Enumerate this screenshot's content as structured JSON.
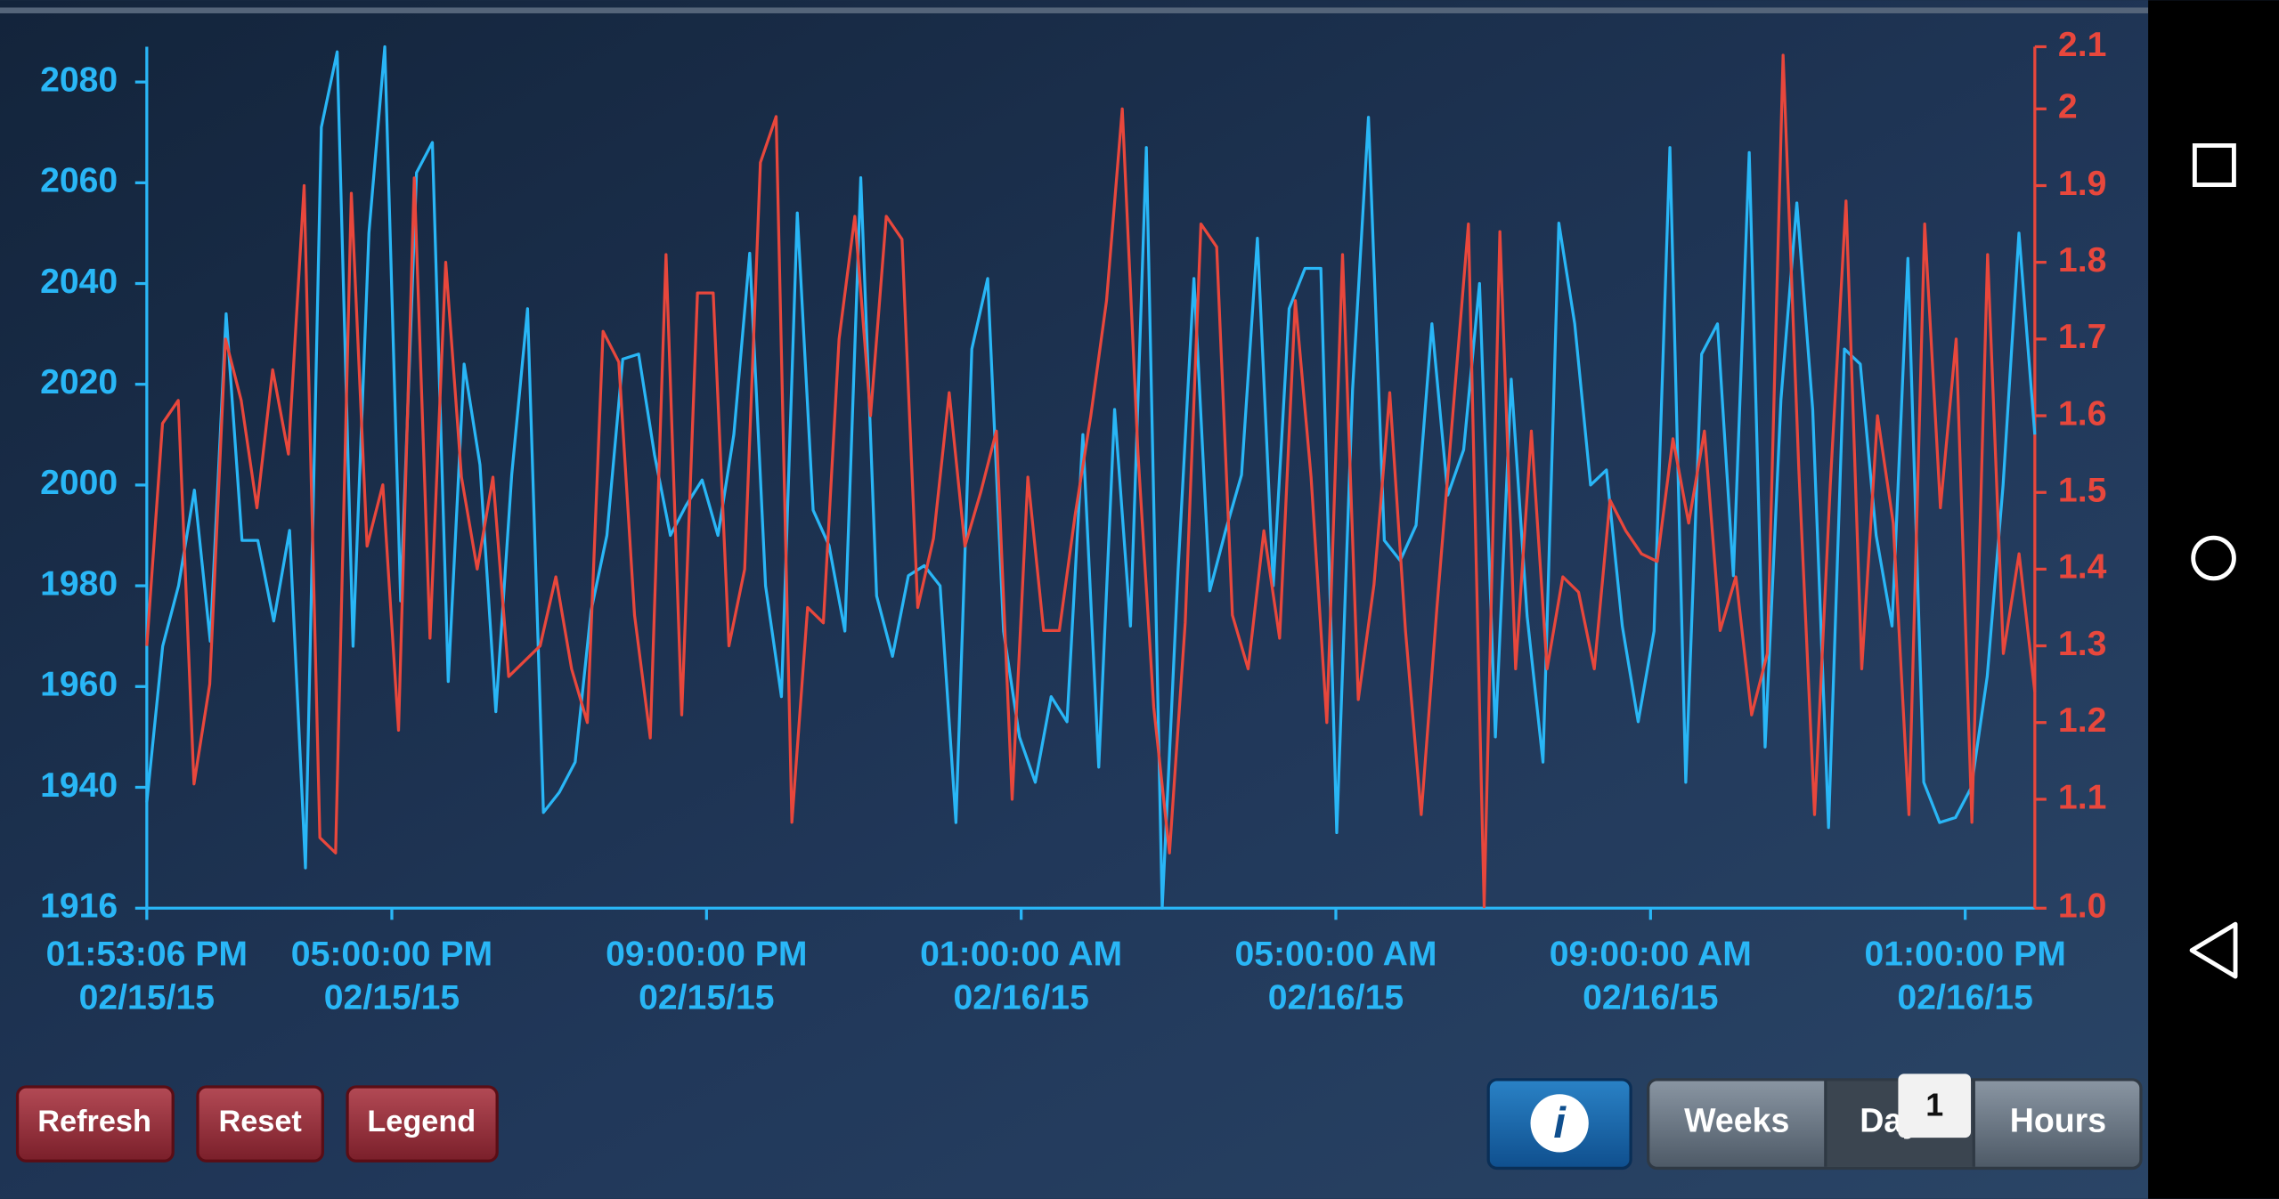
{
  "chart_data": {
    "type": "line",
    "xlim": [
      "2015-02-15T13:53:06",
      "2015-02-16T13:53:06"
    ],
    "xticks": [
      {
        "value": "2015-02-15T13:53:06",
        "label": [
          "01:53:06 PM",
          "02/15/15"
        ]
      },
      {
        "value": "2015-02-15T17:00:00",
        "label": [
          "05:00:00 PM",
          "02/15/15"
        ]
      },
      {
        "value": "2015-02-15T21:00:00",
        "label": [
          "09:00:00 PM",
          "02/15/15"
        ]
      },
      {
        "value": "2015-02-16T01:00:00",
        "label": [
          "01:00:00 AM",
          "02/16/15"
        ]
      },
      {
        "value": "2015-02-16T05:00:00",
        "label": [
          "05:00:00 AM",
          "02/16/15"
        ]
      },
      {
        "value": "2015-02-16T09:00:00",
        "label": [
          "09:00:00 AM",
          "02/16/15"
        ]
      },
      {
        "value": "2015-02-16T13:00:00",
        "label": [
          "01:00:00 PM",
          "02/16/15"
        ]
      }
    ],
    "ylim": [
      1916,
      2087
    ],
    "yticks": [
      1916,
      1940,
      1960,
      1980,
      2000,
      2020,
      2040,
      2060,
      2080
    ],
    "y2lim": [
      0.958,
      2.081
    ],
    "y2ticks": [
      {
        "value": 0.958,
        "label": "1.0"
      },
      1.1,
      1.2,
      1.3,
      1.4,
      1.5,
      1.6,
      1.7,
      1.8,
      1.9,
      2.0,
      {
        "value": 2.081,
        "label": "2.1"
      }
    ],
    "series": [
      {
        "color": "#29b6f6",
        "values": [
          1937,
          1968,
          1980,
          1999,
          1969,
          2034,
          1989,
          1989,
          1973,
          1991,
          1924,
          2071,
          2086,
          1968,
          2050,
          2087,
          1977,
          2062,
          2068,
          1961,
          2024,
          2004,
          1955,
          2002,
          2035,
          1935,
          1939,
          1945,
          1975,
          1990,
          2025,
          2026,
          2006,
          1990,
          1996,
          2001,
          1990,
          2010,
          2046,
          1980,
          1958,
          2054,
          1995,
          1988,
          1971,
          2061,
          1978,
          1966,
          1982,
          1984,
          1980,
          1933,
          2027,
          2041,
          1971,
          1950,
          1941,
          1958,
          1953,
          2010,
          1944,
          2015,
          1972,
          2067,
          1916,
          1983,
          2041,
          1979,
          1991,
          2002,
          2049,
          1980,
          2035,
          2043,
          2043,
          1931,
          2019,
          2073,
          1989,
          1985,
          1992,
          2032,
          1998,
          2007,
          2040,
          1950,
          2021,
          1974,
          1945,
          2052,
          2032,
          2000,
          2003,
          1972,
          1953,
          1971,
          2067,
          1941,
          2026,
          2032,
          1982,
          2066,
          1948,
          2017,
          2056,
          2015,
          1932,
          2027,
          2024,
          1990,
          1972,
          2045,
          1941,
          1933,
          1934,
          1940,
          1962,
          2000,
          2050,
          2010
        ]
      },
      {
        "color": "#e8473c",
        "axis": "y2",
        "values": [
          1.3,
          1.59,
          1.62,
          1.12,
          1.25,
          1.7,
          1.62,
          1.48,
          1.66,
          1.55,
          1.9,
          1.05,
          1.03,
          1.89,
          1.43,
          1.51,
          1.19,
          1.91,
          1.31,
          1.8,
          1.52,
          1.4,
          1.52,
          1.26,
          1.28,
          1.3,
          1.39,
          1.27,
          1.2,
          1.71,
          1.67,
          1.34,
          1.18,
          1.81,
          1.21,
          1.76,
          1.76,
          1.3,
          1.4,
          1.93,
          1.99,
          1.07,
          1.35,
          1.33,
          1.7,
          1.86,
          1.6,
          1.86,
          1.83,
          1.35,
          1.44,
          1.63,
          1.43,
          1.5,
          1.58,
          1.1,
          1.52,
          1.32,
          1.32,
          1.47,
          1.6,
          1.75,
          2.0,
          1.55,
          1.22,
          1.03,
          1.33,
          1.85,
          1.82,
          1.34,
          1.27,
          1.45,
          1.31,
          1.75,
          1.52,
          1.2,
          1.81,
          1.23,
          1.38,
          1.63,
          1.32,
          1.08,
          1.35,
          1.6,
          1.85,
          0.96,
          1.84,
          1.27,
          1.58,
          1.27,
          1.39,
          1.37,
          1.27,
          1.49,
          1.45,
          1.42,
          1.41,
          1.57,
          1.46,
          1.58,
          1.32,
          1.39,
          1.21,
          1.29,
          2.07,
          1.53,
          1.08,
          1.51,
          1.88,
          1.27,
          1.6,
          1.46,
          1.08,
          1.85,
          1.48,
          1.7,
          1.07,
          1.81,
          1.29,
          1.42,
          1.24
        ]
      }
    ]
  },
  "buttons": {
    "actions": [
      "Refresh",
      "Reset",
      "Legend"
    ],
    "range": [
      "Weeks",
      "Days",
      "Hours"
    ],
    "badge": "1"
  }
}
